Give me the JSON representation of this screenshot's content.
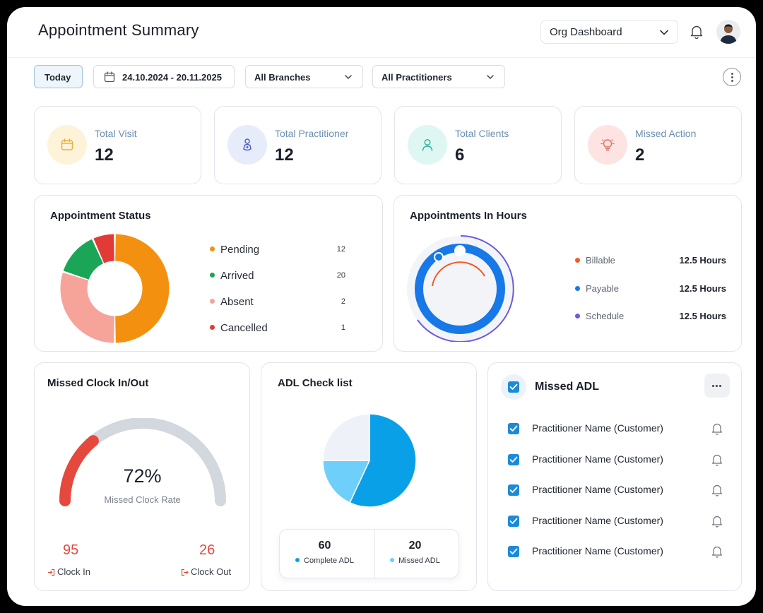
{
  "header": {
    "title": "Appointment Summary",
    "org_select": "Org Dashboard"
  },
  "filters": {
    "today": "Today",
    "date_range": "24.10.2024 - 20.11.2025",
    "branches": "All Branches",
    "practitioners": "All Practitioners"
  },
  "stats": [
    {
      "label": "Total Visit",
      "value": "12",
      "icon": "calendar-icon",
      "bg": "#fdf3d9",
      "color": "#e9b23c"
    },
    {
      "label": "Total Practitioner",
      "value": "12",
      "icon": "practitioner-icon",
      "bg": "#e7ecfb",
      "color": "#4a62c6"
    },
    {
      "label": "Total Clients",
      "value": "6",
      "icon": "client-icon",
      "bg": "#dff7f3",
      "color": "#36b7a1"
    },
    {
      "label": "Missed Action",
      "value": "2",
      "icon": "lightbulb-icon",
      "bg": "#fde4e2",
      "color": "#e46a5e"
    }
  ],
  "appointment_status": {
    "title": "Appointment Status",
    "items": [
      {
        "label": "Pending",
        "value": "12",
        "color": "#f4900f"
      },
      {
        "label": "Arrived",
        "value": "20",
        "color": "#1aa557"
      },
      {
        "label": "Absent",
        "value": "2",
        "color": "#f6a39a"
      },
      {
        "label": "Cancelled",
        "value": "1",
        "color": "#e23b35"
      }
    ]
  },
  "appointments_in_hours": {
    "title": "Appointments In Hours",
    "items": [
      {
        "label": "Billable",
        "value": "12.5 Hours",
        "color": "#ee5a2a"
      },
      {
        "label": "Payable",
        "value": "12.5 Hours",
        "color": "#1778e8"
      },
      {
        "label": "Schedule",
        "value": "12.5 Hours",
        "color": "#6a5be0"
      }
    ]
  },
  "missed_clock": {
    "title": "Missed Clock In/Out",
    "percent": "72%",
    "percent_value": 0.28,
    "subtitle": "Missed Clock Rate",
    "clock_in_value": "95",
    "clock_in_label": "Clock In",
    "clock_out_value": "26",
    "clock_out_label": "Clock Out"
  },
  "adl_checklist": {
    "title": "ADL Check list",
    "complete_value": "60",
    "complete_label": "Complete ADL",
    "missed_value": "20",
    "missed_label": "Missed ADL",
    "colors": {
      "complete": "#0aa0e8",
      "missed": "#6fcffb",
      "other": "#eef2f8"
    }
  },
  "missed_adl": {
    "title": "Missed ADL",
    "items": [
      "Practitioner Name (Customer)",
      "Practitioner Name (Customer)",
      "Practitioner Name (Customer)",
      "Practitioner Name (Customer)",
      "Practitioner Name (Customer)"
    ]
  },
  "chart_data": [
    {
      "type": "pie",
      "title": "Appointment Status",
      "categories": [
        "Pending",
        "Arrived",
        "Absent",
        "Cancelled"
      ],
      "values": [
        12,
        20,
        2,
        1
      ]
    },
    {
      "type": "pie",
      "title": "ADL Check list",
      "categories": [
        "Complete ADL",
        "Missed ADL"
      ],
      "values": [
        60,
        20
      ]
    }
  ]
}
